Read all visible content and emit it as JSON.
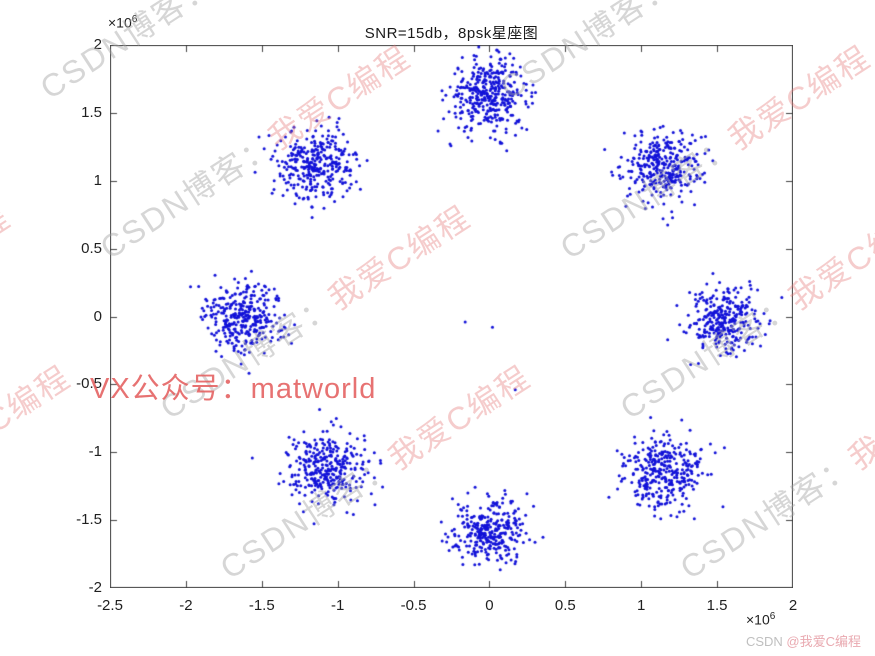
{
  "chart_data": {
    "type": "scatter",
    "title": "SNR=15db，8psk星座图",
    "xlabel": "",
    "ylabel": "",
    "x_range": [
      -2.5,
      2
    ],
    "y_range": [
      -2,
      2
    ],
    "x_ticks": [
      -2.5,
      -2,
      -1.5,
      -1,
      -0.5,
      0,
      0.5,
      1,
      1.5,
      2
    ],
    "y_ticks": [
      2,
      1.5,
      1,
      0.5,
      0,
      -0.5,
      -1,
      -1.5,
      -2
    ],
    "axis_scale_note": "both axes in units of 10^6",
    "exponent_base": "×10",
    "exponent_power": "6",
    "marker_color": "#1212d8",
    "marker_size_px": 1.5,
    "grid": false,
    "legend": "none",
    "description": "8-PSK constellation at SNR=15db: 8 noisy symbol clusters on a circle of radius ~1.6e6",
    "seed": 1234,
    "clusters": [
      {
        "x": 0.0,
        "y": 1.63,
        "sigma": 0.13,
        "n": 380
      },
      {
        "x": 1.14,
        "y": 1.11,
        "sigma": 0.13,
        "n": 330
      },
      {
        "x": -1.13,
        "y": 1.12,
        "sigma": 0.13,
        "n": 330
      },
      {
        "x": -1.62,
        "y": 0.0,
        "sigma": 0.13,
        "n": 330
      },
      {
        "x": 1.55,
        "y": -0.03,
        "sigma": 0.12,
        "n": 300
      },
      {
        "x": -1.08,
        "y": -1.11,
        "sigma": 0.13,
        "n": 330
      },
      {
        "x": 1.15,
        "y": -1.15,
        "sigma": 0.13,
        "n": 330
      },
      {
        "x": 0.0,
        "y": -1.58,
        "sigma": 0.12,
        "n": 310
      }
    ],
    "stray_points": [
      [
        -0.16,
        -0.04
      ],
      [
        0.02,
        -0.08
      ],
      [
        0.17,
        -0.54
      ]
    ]
  },
  "watermarks": {
    "tile_gray": "CSDN博客：",
    "tile_pink": "我爱C编程",
    "vx_text": "VX公众号：matworld",
    "credit_gray": "CSDN ",
    "credit_pink": "@我爱C编程"
  }
}
